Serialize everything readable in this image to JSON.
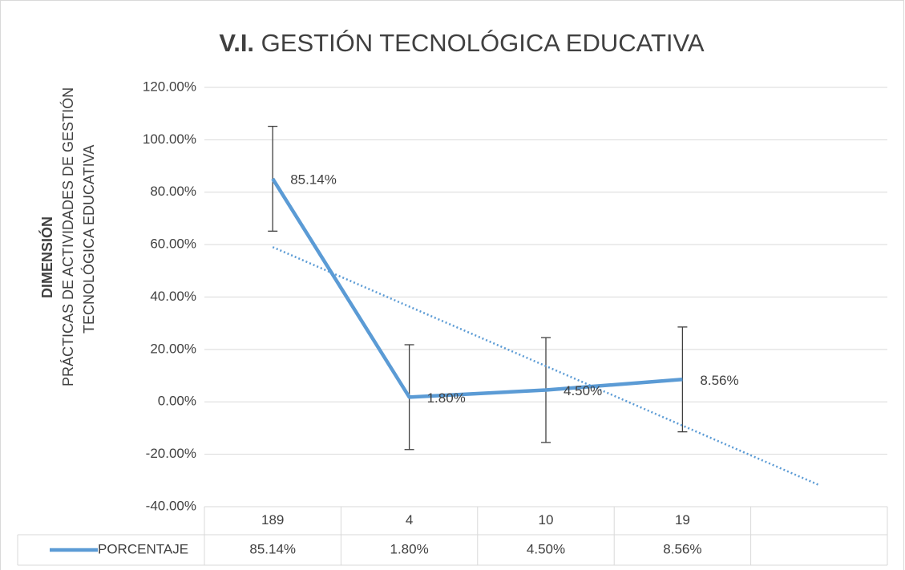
{
  "chart_data": {
    "type": "line",
    "title_prefix": "V.I.",
    "title": "GESTIÓN TECNOLÓGICA EDUCATIVA",
    "ylabel_bold": "DIMENSIÓN",
    "ylabel": [
      "PRÁCTICAS DE ACTIVIDADES DE GESTIÓN",
      "TECNOLÓGICA EDUCATIVA"
    ],
    "categories": [
      "189",
      "4",
      "10",
      "19",
      null
    ],
    "series": [
      {
        "name": "PORCENTAJE",
        "color": "#5b9bd5",
        "values": [
          85.14,
          1.8,
          4.5,
          8.56,
          null
        ],
        "value_labels": [
          "85.14%",
          "1.80%",
          "4.50%",
          "8.56%",
          null
        ],
        "errors": [
          20,
          20,
          20,
          20,
          null
        ]
      }
    ],
    "trendline": {
      "type": "linear",
      "forward": 1,
      "style": "dotted"
    },
    "ylim": [
      -40,
      120
    ],
    "yticks": [
      {
        "value": -40,
        "label": "-40.00%"
      },
      {
        "value": -20,
        "label": "-20.00%"
      },
      {
        "value": 0,
        "label": "0.00%"
      },
      {
        "value": 20,
        "label": "20.00%"
      },
      {
        "value": 40,
        "label": "40.00%"
      },
      {
        "value": 60,
        "label": "60.00%"
      },
      {
        "value": 80,
        "label": "80.00%"
      },
      {
        "value": 100,
        "label": "100.00%"
      },
      {
        "value": 120,
        "label": "120.00%"
      }
    ],
    "grid": true,
    "data_table": true
  }
}
